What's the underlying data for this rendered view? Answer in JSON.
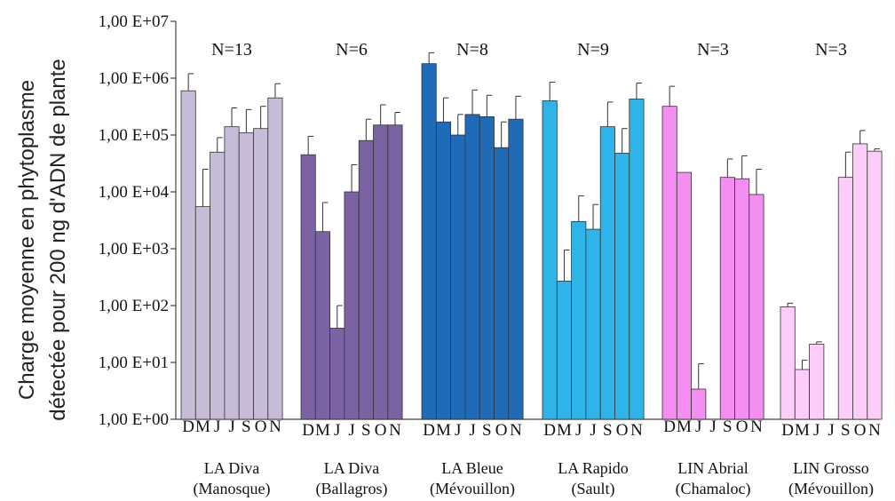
{
  "chart_data": {
    "type": "bar",
    "ylabel_line1": "Charge moyenne en phytoplasme",
    "ylabel_line2": "détectée pour 200 ng d'ADN de plante",
    "yscale": "log",
    "ylim": [
      1,
      10000000
    ],
    "yticks": [
      {
        "value": 1,
        "label": "1,00 E+00"
      },
      {
        "value": 10,
        "label": "1,00 E+01"
      },
      {
        "value": 100,
        "label": "1,00 E+02"
      },
      {
        "value": 1000,
        "label": "1,00 E+03"
      },
      {
        "value": 10000,
        "label": "1,00 E+04"
      },
      {
        "value": 100000,
        "label": "1,00 E+05"
      },
      {
        "value": 1000000,
        "label": "1,00 E+06"
      },
      {
        "value": 10000000,
        "label": "1,00 E+07"
      }
    ],
    "grid": false,
    "groups": [
      {
        "name": "LA Diva",
        "location": "(Manosque)",
        "n_label": "N=13",
        "color": "#c6bcd8",
        "months": [
          "D",
          "M",
          "J",
          "J",
          "S",
          "O",
          "N"
        ],
        "values": [
          600000,
          5500,
          50000,
          140000,
          110000,
          130000,
          450000
        ],
        "err_high": [
          1200000,
          25000,
          90000,
          300000,
          280000,
          320000,
          800000
        ]
      },
      {
        "name": "LA Diva",
        "location": "(Ballagros)",
        "n_label": "N=6",
        "color": "#7b62a3",
        "months": [
          "D",
          "M",
          "J",
          "J",
          "S",
          "O",
          "N"
        ],
        "values": [
          45000,
          2000,
          40,
          10000,
          80000,
          150000,
          150000
        ],
        "err_high": [
          95000,
          6500,
          100,
          30000,
          190000,
          340000,
          250000
        ]
      },
      {
        "name": "LA Bleue",
        "location": "(Mévouillon)",
        "n_label": "N=8",
        "color": "#1f6bb8",
        "months": [
          "D",
          "M",
          "J",
          "J",
          "S",
          "O",
          "N"
        ],
        "values": [
          1800000,
          170000,
          100000,
          230000,
          210000,
          60000,
          190000
        ],
        "err_high": [
          2800000,
          450000,
          230000,
          620000,
          500000,
          170000,
          480000
        ]
      },
      {
        "name": "LA Rapido",
        "location": "(Sault)",
        "n_label": "N=9",
        "color": "#2fb4ea",
        "months": [
          "D",
          "M",
          "J",
          "J",
          "S",
          "O",
          "N"
        ],
        "values": [
          400000,
          270,
          3000,
          2200,
          140000,
          48000,
          430000
        ],
        "err_high": [
          850000,
          950,
          8500,
          6000,
          380000,
          130000,
          820000
        ]
      },
      {
        "name": "LIN Abrial",
        "location": "(Chamaloc)",
        "n_label": "N=3",
        "color": "#f48ef0",
        "months": [
          "D",
          "M",
          "J",
          "J",
          "S",
          "O",
          "N"
        ],
        "values": [
          320000,
          22000,
          3.4,
          null,
          18000,
          17000,
          9000
        ],
        "err_high": [
          720000,
          22000,
          9.5,
          null,
          38000,
          43000,
          25000
        ]
      },
      {
        "name": "LIN Grosso",
        "location": "(Mévouillon)",
        "n_label": "N=3",
        "color": "#fbcdf8",
        "months": [
          "D",
          "M",
          "J",
          "J",
          "S",
          "O",
          "N"
        ],
        "values": [
          95,
          7.5,
          21,
          null,
          18000,
          70000,
          52000
        ],
        "err_high": [
          110,
          11,
          23,
          null,
          50000,
          120000,
          57000
        ]
      }
    ]
  }
}
